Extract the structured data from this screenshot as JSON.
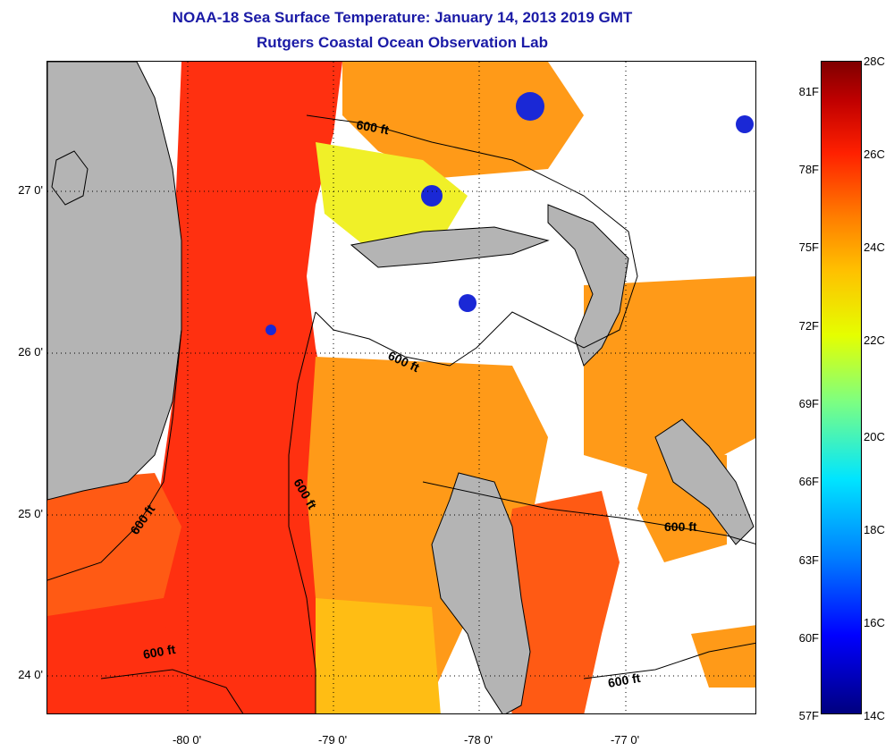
{
  "header": {
    "title": "NOAA-18 Sea Surface Temperature:  January 14, 2013 2019 GMT",
    "subtitle": "Rutgers Coastal Ocean Observation Lab"
  },
  "map": {
    "lat_ticks": [
      "27 0'",
      "26 0'",
      "25 0'",
      "24 0'"
    ],
    "lon_ticks": [
      "-80 0'",
      "-79 0'",
      "-78 0'",
      "-77 0'"
    ],
    "contour_label": "600 ft",
    "colors": {
      "land": "#b4b4b4",
      "cloud": "#ffffff",
      "warm_red": "#ff3010",
      "red_orange": "#ff5a14",
      "orange": "#ff9a18",
      "amber": "#ffbd14",
      "yellow": "#f0f028",
      "cold_blue": "#1a28d6"
    }
  },
  "colorbar": {
    "fahrenheit": [
      "81F",
      "78F",
      "75F",
      "72F",
      "69F",
      "66F",
      "63F",
      "60F",
      "57F"
    ],
    "celsius": [
      "28C",
      "26C",
      "24C",
      "22C",
      "20C",
      "18C",
      "16C",
      "14C"
    ],
    "min_c": 14,
    "max_c": 28
  }
}
